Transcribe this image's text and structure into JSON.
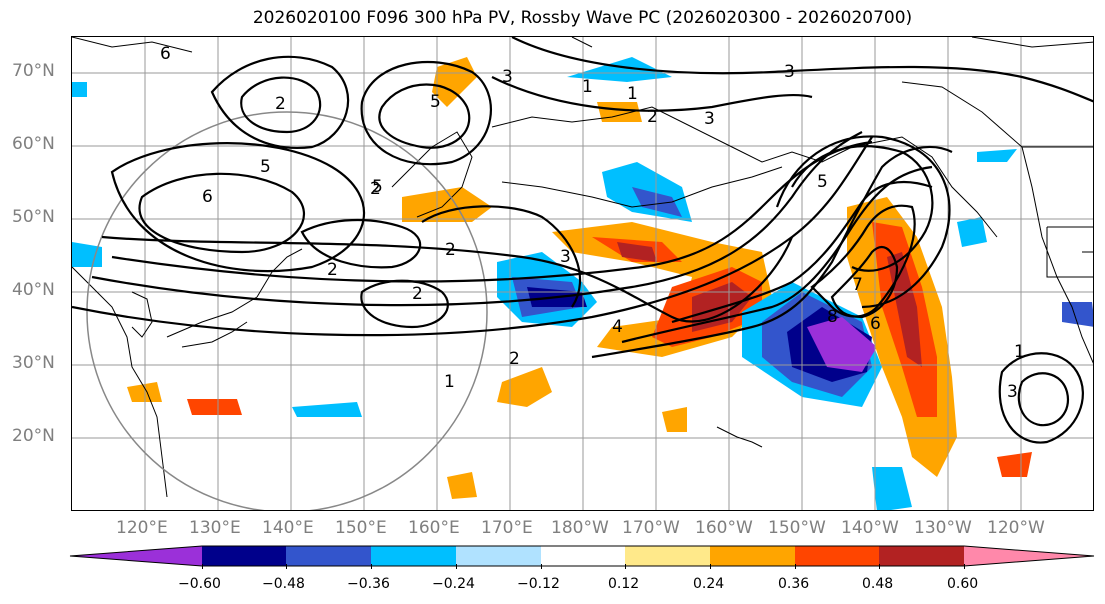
{
  "title": "2026020100 F096 300 hPa PV, Rossby Wave PC (2026020300 - 2026020700)",
  "lat_labels": [
    "70°N",
    "60°N",
    "50°N",
    "40°N",
    "30°N",
    "20°N"
  ],
  "lon_labels": [
    "120°E",
    "130°E",
    "140°E",
    "150°E",
    "160°E",
    "170°E",
    "180°W",
    "170°W",
    "160°W",
    "150°W",
    "140°W",
    "130°W",
    "120°W"
  ],
  "colorbar": {
    "ticks": [
      "−0.60",
      "−0.48",
      "−0.36",
      "−0.24",
      "−0.12",
      "0.12",
      "0.24",
      "0.36",
      "0.48",
      "0.60"
    ],
    "colors": [
      "#9b30d9",
      "#00008b",
      "#3355cc",
      "#00bfff",
      "#b0e2ff",
      "#ffffff",
      "#ffe98a",
      "#ffa500",
      "#ff4500",
      "#b22222",
      "#ff88aa"
    ]
  },
  "contour_labels": [
    "6",
    "3",
    "1",
    "5",
    "3",
    "2",
    "3",
    "5",
    "2",
    "5",
    "6",
    "2",
    "2",
    "3",
    "2",
    "2",
    "4",
    "2",
    "1",
    "1",
    "5",
    "7",
    "8",
    "6",
    "1",
    "3"
  ],
  "icons": {
    "circle": "great-circle-ring"
  }
}
